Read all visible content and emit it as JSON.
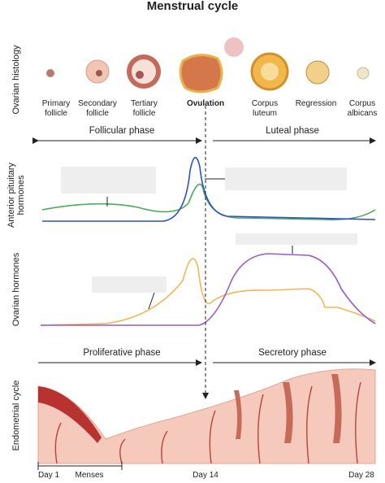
{
  "title": "Menstrual cycle",
  "row_labels": [
    "Ovarian histology",
    "Anterior pituitary hormones",
    "Ovarian hormones",
    "Endometrial cycle"
  ],
  "stages": [
    "Primary follicle",
    "Secondary follicle",
    "Tertiary follicle",
    "Ovulation",
    "Corpus luteum",
    "Regression",
    "Corpus albicans"
  ],
  "phases": [
    "Follicular phase",
    "Luteal phase",
    "Proliferative phase",
    "Secretory phase"
  ],
  "days": [
    "Day 1",
    "Menses",
    "Day 14",
    "Day 28"
  ]
}
